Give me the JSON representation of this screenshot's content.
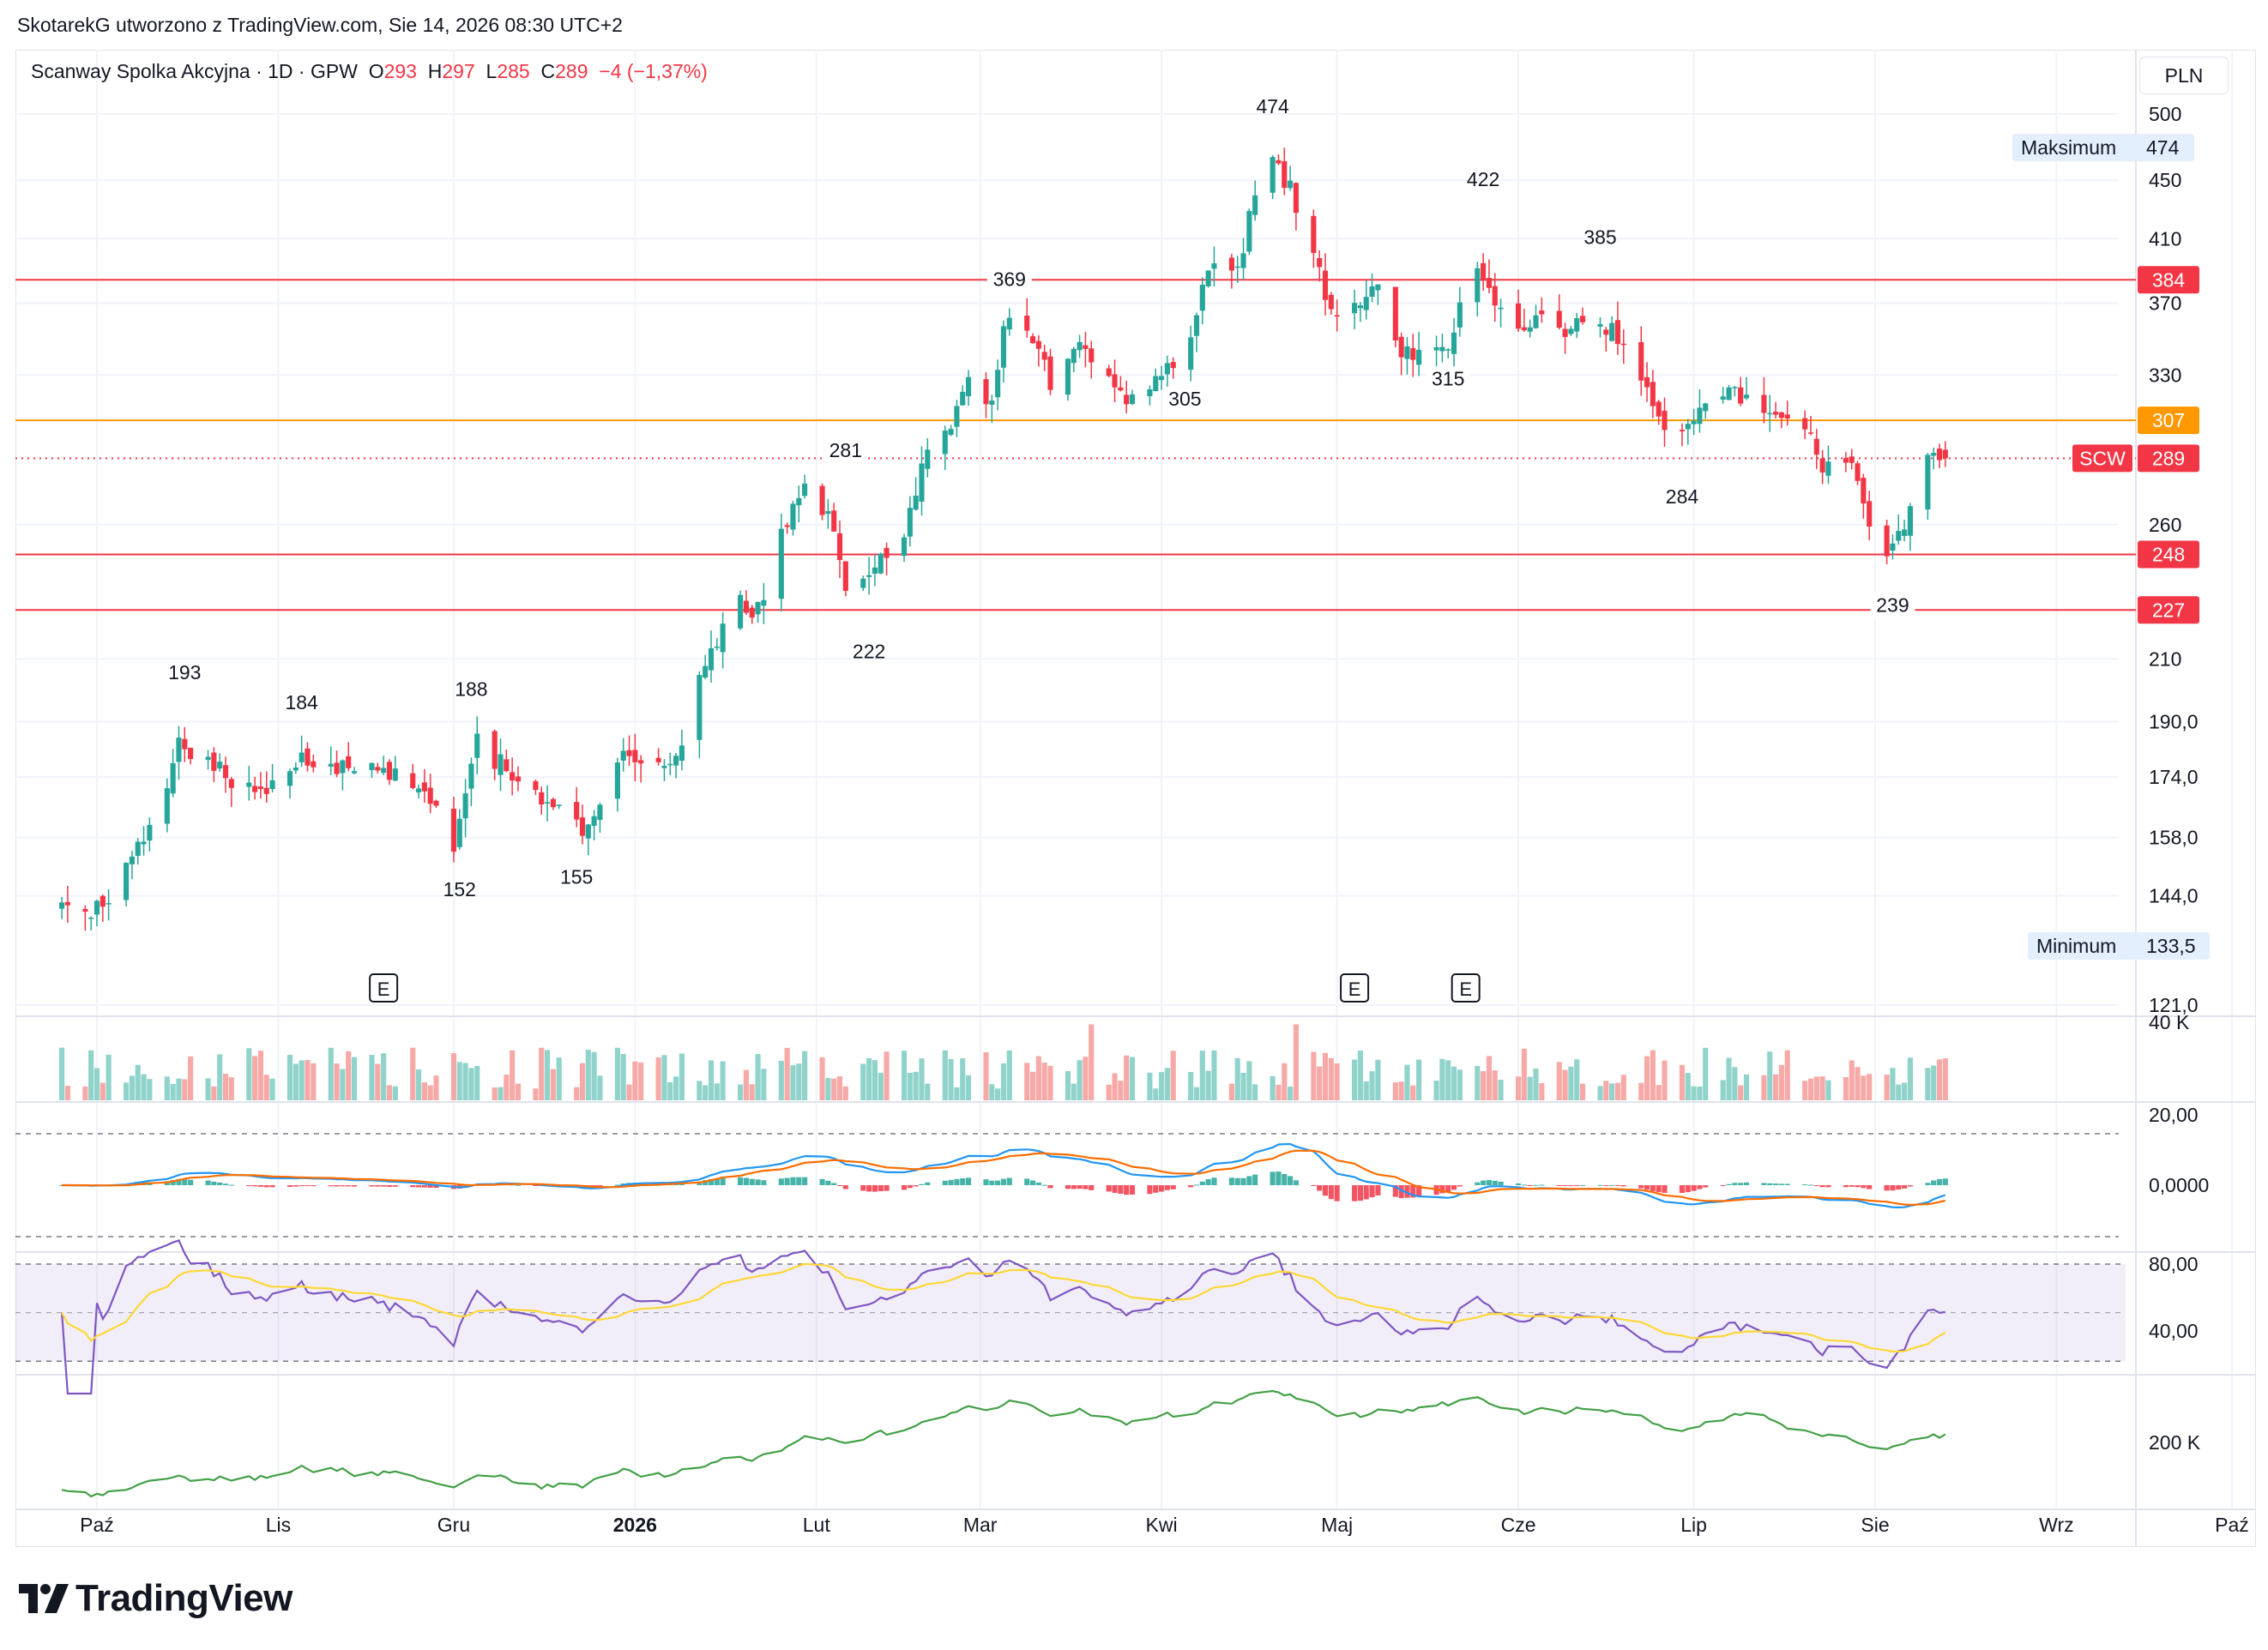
{
  "header": {
    "attribution": "SkotarekG utworzono z TradingView.com, Sie 14, 2026 08:30 UTC+2"
  },
  "legend": {
    "symbol": "Scanway Spolka Akcyjna · 1D · GPW",
    "o_label": "O",
    "o_value": "293",
    "h_label": "H",
    "h_value": "297",
    "l_label": "L",
    "l_value": "285",
    "c_label": "C",
    "c_value": "289",
    "change": "−4 (−1,37%)"
  },
  "currency": "PLN",
  "badges": {
    "max_label": "Maksimum",
    "max_value": "474",
    "min_label": "Minimum",
    "min_value": "133,5",
    "last_label": "SCW",
    "last_value": "289"
  },
  "brand": {
    "name": "TradingView"
  },
  "colors": {
    "up": "#26a69a",
    "down": "#f23645",
    "up_vol": "#8fd3cb",
    "down_vol": "#f7a9a7",
    "orange": "#ff9800",
    "red_line": "#f23645",
    "macd": "#2196f3",
    "signal": "#ff6d00",
    "rsi": "#7e57c2",
    "rsi_ma": "#fdd835",
    "obv": "#43a047"
  },
  "chart_data": {
    "type": "candlestick",
    "title": "Scanway Spolka Akcyjna · 1D · GPW",
    "price_scale": "log",
    "y_ticks": [
      "500",
      "450",
      "410",
      "370",
      "330",
      "260",
      "210",
      "190,0",
      "174,0",
      "158,0",
      "144,0",
      "121,0"
    ],
    "x_labels": [
      "Paź",
      "Lis",
      "Gru",
      "2026",
      "Lut",
      "Mar",
      "Kwi",
      "Maj",
      "Cze",
      "Lip",
      "Sie",
      "Wrz",
      "Paź"
    ],
    "horizontal_levels": [
      {
        "value": 384,
        "label": "384",
        "color": "red"
      },
      {
        "value": 307,
        "label": "307",
        "color": "orange"
      },
      {
        "value": 248,
        "label": "248",
        "color": "red"
      },
      {
        "value": 227,
        "label": "227",
        "color": "red"
      }
    ],
    "last_price": 289,
    "annotations": [
      "193",
      "184",
      "188",
      "152",
      "155",
      "222",
      "281",
      "305",
      "369",
      "474",
      "422",
      "385",
      "315",
      "284",
      "239"
    ],
    "earnings_markers": [
      "E",
      "E",
      "E"
    ],
    "anchors": [
      {
        "date": "2025-09-25",
        "close": 142
      },
      {
        "date": "2025-09-29",
        "close": 138
      },
      {
        "date": "2025-10-06",
        "close": 150
      },
      {
        "date": "2025-10-10",
        "close": 160
      },
      {
        "date": "2025-10-15",
        "close": 183
      },
      {
        "date": "2025-10-20",
        "close": 178
      },
      {
        "date": "2025-10-24",
        "close": 174
      },
      {
        "date": "2025-10-30",
        "close": 170
      },
      {
        "date": "2025-11-05",
        "close": 180
      },
      {
        "date": "2025-11-12",
        "close": 177
      },
      {
        "date": "2025-11-19",
        "close": 176
      },
      {
        "date": "2025-11-24",
        "close": 174
      },
      {
        "date": "2025-11-27",
        "close": 168
      },
      {
        "date": "2025-12-01",
        "close": 156
      },
      {
        "date": "2025-12-05",
        "close": 184
      },
      {
        "date": "2025-12-10",
        "close": 176
      },
      {
        "date": "2025-12-15",
        "close": 170
      },
      {
        "date": "2025-12-19",
        "close": 164
      },
      {
        "date": "2025-12-23",
        "close": 160
      },
      {
        "date": "2025-12-29",
        "close": 178
      },
      {
        "date": "2026-01-02",
        "close": 180
      },
      {
        "date": "2026-01-08",
        "close": 180
      },
      {
        "date": "2026-01-14",
        "close": 214
      },
      {
        "date": "2026-01-19",
        "close": 232
      },
      {
        "date": "2026-01-22",
        "close": 226
      },
      {
        "date": "2026-01-26",
        "close": 256
      },
      {
        "date": "2026-01-30",
        "close": 274
      },
      {
        "date": "2026-02-03",
        "close": 262
      },
      {
        "date": "2026-02-06",
        "close": 238
      },
      {
        "date": "2026-02-11",
        "close": 244
      },
      {
        "date": "2026-02-16",
        "close": 256
      },
      {
        "date": "2026-02-20",
        "close": 294
      },
      {
        "date": "2026-02-24",
        "close": 305
      },
      {
        "date": "2026-02-27",
        "close": 330
      },
      {
        "date": "2026-03-03",
        "close": 315
      },
      {
        "date": "2026-03-05",
        "close": 360
      },
      {
        "date": "2026-03-10",
        "close": 348
      },
      {
        "date": "2026-03-13",
        "close": 328
      },
      {
        "date": "2026-03-18",
        "close": 350
      },
      {
        "date": "2026-03-23",
        "close": 326
      },
      {
        "date": "2026-03-27",
        "close": 318
      },
      {
        "date": "2026-04-01",
        "close": 330
      },
      {
        "date": "2026-04-06",
        "close": 350
      },
      {
        "date": "2026-04-09",
        "close": 390
      },
      {
        "date": "2026-04-14",
        "close": 388
      },
      {
        "date": "2026-04-17",
        "close": 440
      },
      {
        "date": "2026-04-20",
        "close": 462
      },
      {
        "date": "2026-04-23",
        "close": 444
      },
      {
        "date": "2026-04-27",
        "close": 405
      },
      {
        "date": "2026-04-30",
        "close": 362
      },
      {
        "date": "2026-05-05",
        "close": 372
      },
      {
        "date": "2026-05-08",
        "close": 382
      },
      {
        "date": "2026-05-12",
        "close": 345
      },
      {
        "date": "2026-05-15",
        "close": 338
      },
      {
        "date": "2026-05-20",
        "close": 345
      },
      {
        "date": "2026-05-25",
        "close": 395
      },
      {
        "date": "2026-05-28",
        "close": 372
      },
      {
        "date": "2026-06-02",
        "close": 355
      },
      {
        "date": "2026-06-05",
        "close": 360
      },
      {
        "date": "2026-06-10",
        "close": 354
      },
      {
        "date": "2026-06-15",
        "close": 362
      },
      {
        "date": "2026-06-18",
        "close": 350
      },
      {
        "date": "2026-06-23",
        "close": 322
      },
      {
        "date": "2026-06-26",
        "close": 302
      },
      {
        "date": "2026-07-01",
        "close": 305
      },
      {
        "date": "2026-07-06",
        "close": 320
      },
      {
        "date": "2026-07-10",
        "close": 318
      },
      {
        "date": "2026-07-15",
        "close": 315
      },
      {
        "date": "2026-07-20",
        "close": 300
      },
      {
        "date": "2026-07-23",
        "close": 287
      },
      {
        "date": "2026-07-27",
        "close": 292
      },
      {
        "date": "2026-07-30",
        "close": 268
      },
      {
        "date": "2026-08-03",
        "close": 250
      },
      {
        "date": "2026-08-06",
        "close": 262
      },
      {
        "date": "2026-08-10",
        "close": 293
      },
      {
        "date": "2026-08-13",
        "close": 289
      }
    ],
    "volume_scale_label": "40 K",
    "macd": {
      "y_ticks": [
        "20,00",
        "0,0000"
      ]
    },
    "rsi": {
      "y_ticks": [
        "80,00",
        "40,00"
      ]
    },
    "obv": {
      "y_ticks": [
        "200 K"
      ]
    }
  }
}
